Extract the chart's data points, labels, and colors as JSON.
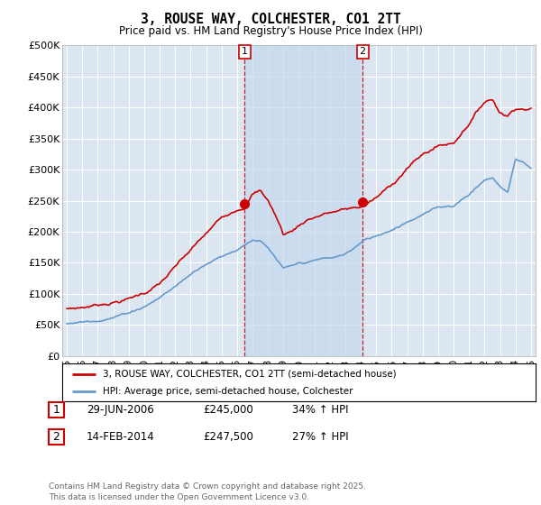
{
  "title": "3, ROUSE WAY, COLCHESTER, CO1 2TT",
  "subtitle": "Price paid vs. HM Land Registry's House Price Index (HPI)",
  "ylim": [
    0,
    500000
  ],
  "yticks": [
    0,
    50000,
    100000,
    150000,
    200000,
    250000,
    300000,
    350000,
    400000,
    450000,
    500000
  ],
  "ytick_labels": [
    "£0",
    "£50K",
    "£100K",
    "£150K",
    "£200K",
    "£250K",
    "£300K",
    "£350K",
    "£400K",
    "£450K",
    "£500K"
  ],
  "red_color": "#cc0000",
  "blue_color": "#6699cc",
  "bg_color": "#dce6f1",
  "shade_color": "#c5d8ee",
  "grid_color": "#ffffff",
  "vline_color": "#cc0000",
  "purchase1_x": 2006.49,
  "purchase1_y": 245000,
  "purchase2_x": 2014.12,
  "purchase2_y": 247500,
  "vline1_x": 2006.49,
  "vline2_x": 2014.12,
  "legend_line1": "3, ROUSE WAY, COLCHESTER, CO1 2TT (semi-detached house)",
  "legend_line2": "HPI: Average price, semi-detached house, Colchester",
  "footer": "Contains HM Land Registry data © Crown copyright and database right 2025.\nThis data is licensed under the Open Government Licence v3.0.",
  "table_row1": [
    "1",
    "29-JUN-2006",
    "£245,000",
    "34% ↑ HPI"
  ],
  "table_row2": [
    "2",
    "14-FEB-2014",
    "£247,500",
    "27% ↑ HPI"
  ],
  "xmin": 1994.7,
  "xmax": 2025.3
}
